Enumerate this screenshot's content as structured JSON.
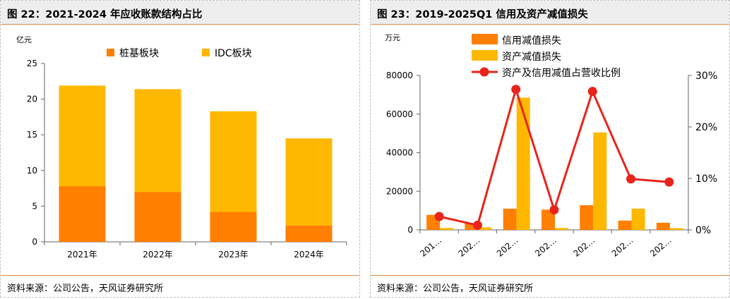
{
  "charts": [
    {
      "title": "图 22：2021-2024 年应收账款结构占比",
      "source": "资料来源：公司公告，天风证券研究所"
    },
    {
      "title": "图 23：2019-2025Q1 信用及资产减值损失",
      "source": "资料来源：公司公告，天风证券研究所"
    }
  ],
  "chart_data": [
    {
      "type": "bar",
      "stacked": true,
      "ylabel": "亿元",
      "ylim": [
        0,
        25
      ],
      "yticks": [
        "0",
        "5",
        "10",
        "15",
        "20",
        "25"
      ],
      "categories": [
        "2021年",
        "2022年",
        "2023年",
        "2024年"
      ],
      "legend_position": "top",
      "series": [
        {
          "name": "桩基板块",
          "values": [
            7.8,
            7.0,
            4.2,
            2.3
          ],
          "color": "#ff7f00"
        },
        {
          "name": "IDC板块",
          "values": [
            14.1,
            14.4,
            14.1,
            12.2
          ],
          "color": "#ffb800"
        }
      ]
    },
    {
      "type": "bar+line",
      "ylabel": "万元",
      "ylim": [
        0,
        80000
      ],
      "yticks": [
        "0",
        "20000",
        "40000",
        "60000",
        "80000"
      ],
      "y2lim": [
        0,
        30
      ],
      "y2ticks": [
        "0%",
        "10%",
        "20%",
        "30%"
      ],
      "categories": [
        "201…",
        "202…",
        "202…",
        "202…",
        "202…",
        "202…",
        "202…"
      ],
      "legend_position": "top",
      "series": [
        {
          "name": "信用减值损失",
          "type": "bar",
          "values": [
            7800,
            3500,
            11000,
            10500,
            12800,
            4800,
            3700
          ],
          "color": "#ff7f00"
        },
        {
          "name": "资产减值损失",
          "type": "bar",
          "values": [
            1000,
            1300,
            68500,
            1000,
            50500,
            11000,
            900
          ],
          "color": "#ffb800"
        },
        {
          "name": "资产及信用减值占营收比例",
          "type": "line",
          "axis": "right",
          "values": [
            2.6,
            0.9,
            27.3,
            3.9,
            26.9,
            9.9,
            9.3
          ],
          "color": "#e8241a"
        }
      ]
    }
  ]
}
